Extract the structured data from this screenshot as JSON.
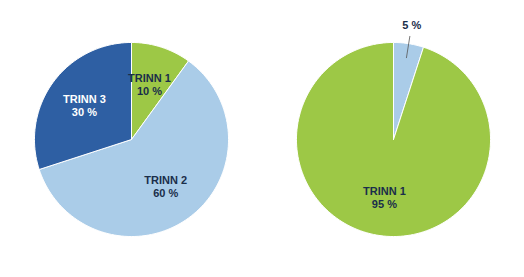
{
  "chart_data": [
    {
      "type": "pie",
      "categories": [
        "TRINN 1",
        "TRINN 2",
        "TRINN 3"
      ],
      "values": [
        10,
        60,
        30
      ],
      "value_labels": [
        "10 %",
        "60 %",
        "30 %"
      ],
      "colors": [
        "#9dc846",
        "#aacce8",
        "#2e5fa3"
      ],
      "data_labels": true
    },
    {
      "type": "pie",
      "categories": [
        null,
        "TRINN 1"
      ],
      "values": [
        5,
        95
      ],
      "value_labels": [
        "5 %",
        "95 %"
      ],
      "colors": [
        "#aacce8",
        "#9dc846"
      ],
      "data_labels": true
    }
  ]
}
